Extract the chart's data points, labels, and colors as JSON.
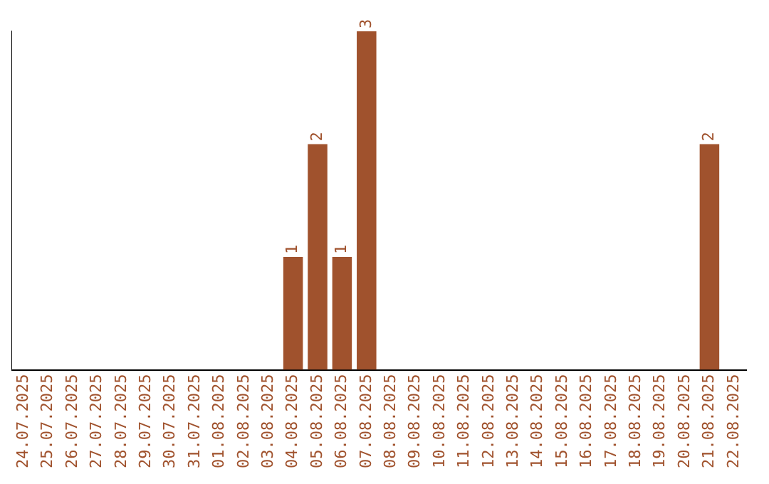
{
  "chart_data": {
    "type": "bar",
    "categories": [
      "24.07.2025",
      "25.07.2025",
      "26.07.2025",
      "27.07.2025",
      "28.07.2025",
      "29.07.2025",
      "30.07.2025",
      "31.07.2025",
      "01.08.2025",
      "02.08.2025",
      "03.08.2025",
      "04.08.2025",
      "05.08.2025",
      "06.08.2025",
      "07.08.2025",
      "08.08.2025",
      "09.08.2025",
      "10.08.2025",
      "11.08.2025",
      "12.08.2025",
      "13.08.2025",
      "14.08.2025",
      "15.08.2025",
      "16.08.2025",
      "17.08.2025",
      "18.08.2025",
      "19.08.2025",
      "20.08.2025",
      "21.08.2025",
      "22.08.2025"
    ],
    "values": [
      0,
      0,
      0,
      0,
      0,
      0,
      0,
      0,
      0,
      0,
      0,
      1,
      2,
      1,
      3,
      0,
      0,
      0,
      0,
      0,
      0,
      0,
      0,
      0,
      0,
      0,
      0,
      0,
      2,
      0
    ],
    "value_labels": [
      null,
      null,
      null,
      null,
      null,
      null,
      null,
      null,
      null,
      null,
      null,
      "1",
      "2",
      "1",
      "3",
      null,
      null,
      null,
      null,
      null,
      null,
      null,
      null,
      null,
      null,
      null,
      null,
      null,
      "2",
      null
    ],
    "color": "#a0522d",
    "grid": false,
    "legend": false,
    "tick_labels": "x"
  }
}
